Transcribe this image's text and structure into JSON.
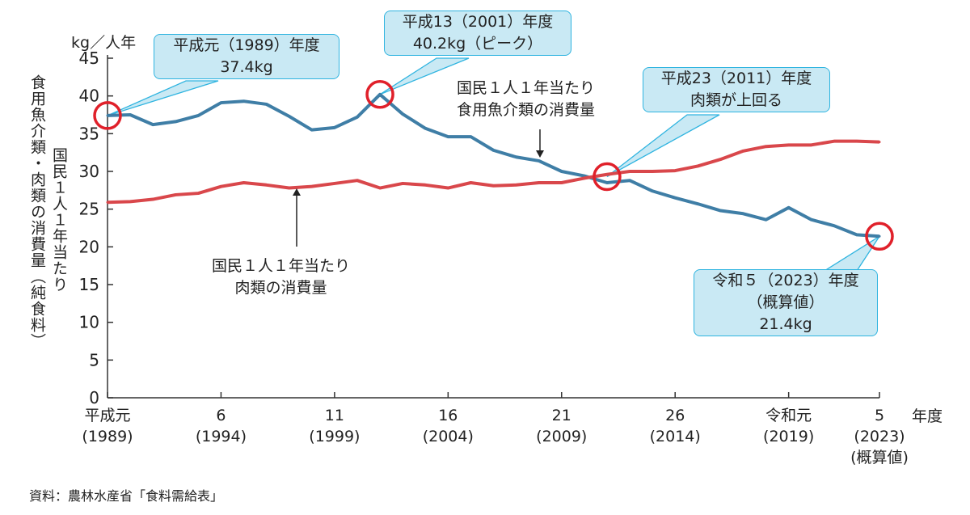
{
  "chart_data": {
    "type": "line",
    "ylabel_unit": "kg／人年",
    "ylabel_outer": "食用魚介類・肉類の消費量（純食料）",
    "ylabel_inner": "国民１人１年当たり",
    "xlabel": "年度",
    "ylim": [
      0,
      45
    ],
    "yticks": [
      0,
      5,
      10,
      15,
      20,
      25,
      30,
      35,
      40,
      45
    ],
    "xlim": [
      1989,
      2023
    ],
    "xticks": [
      {
        "x": 1989,
        "label": [
          "平成元",
          "(1989)"
        ]
      },
      {
        "x": 1994,
        "label": [
          "6",
          "(1994)"
        ]
      },
      {
        "x": 1999,
        "label": [
          "11",
          "(1999)"
        ]
      },
      {
        "x": 2004,
        "label": [
          "16",
          "(2004)"
        ]
      },
      {
        "x": 2009,
        "label": [
          "21",
          "(2009)"
        ]
      },
      {
        "x": 2014,
        "label": [
          "26",
          "(2014)"
        ]
      },
      {
        "x": 2019,
        "label": [
          "令和元",
          "(2019)"
        ]
      },
      {
        "x": 2023,
        "label": [
          "5",
          "(2023)",
          "(概算値)"
        ]
      }
    ],
    "x": [
      1989,
      1990,
      1991,
      1992,
      1993,
      1994,
      1995,
      1996,
      1997,
      1998,
      1999,
      2000,
      2001,
      2002,
      2003,
      2004,
      2005,
      2006,
      2007,
      2008,
      2009,
      2010,
      2011,
      2012,
      2013,
      2014,
      2015,
      2016,
      2017,
      2018,
      2019,
      2020,
      2021,
      2022,
      2023
    ],
    "series": [
      {
        "name": "国民１人１年当たり\n食用魚介類の消費量",
        "color": "#3f7ea6",
        "values": [
          37.4,
          37.5,
          36.2,
          36.6,
          37.4,
          39.1,
          39.3,
          38.9,
          37.3,
          35.5,
          35.8,
          37.2,
          40.2,
          37.6,
          35.7,
          34.6,
          34.6,
          32.8,
          31.9,
          31.4,
          30.0,
          29.4,
          28.5,
          28.8,
          27.4,
          26.5,
          25.7,
          24.8,
          24.4,
          23.6,
          25.2,
          23.6,
          22.8,
          21.6,
          21.4
        ]
      },
      {
        "name": "国民１人１年当たり\n肉類の消費量",
        "color": "#d9474b",
        "values": [
          25.9,
          26.0,
          26.3,
          26.9,
          27.1,
          28.0,
          28.5,
          28.2,
          27.8,
          28.0,
          28.4,
          28.8,
          27.8,
          28.4,
          28.2,
          27.8,
          28.5,
          28.1,
          28.2,
          28.5,
          28.5,
          29.1,
          29.6,
          30.0,
          30.0,
          30.1,
          30.7,
          31.6,
          32.7,
          33.3,
          33.5,
          33.5,
          34.0,
          34.0,
          33.9
        ]
      }
    ],
    "annotations": [
      {
        "text": "平成元（1989）年度\n37.4kg",
        "x": 1989,
        "y": 37.4
      },
      {
        "text": "平成13（2001）年度\n40.2kg（ピーク）",
        "x": 2001,
        "y": 40.2
      },
      {
        "text": "平成23（2011）年度\n肉類が上回る",
        "x": 2011,
        "y": 29.3
      },
      {
        "text": "令和５（2023）年度\n（概算値）\n21.4kg",
        "x": 2023,
        "y": 21.4
      }
    ],
    "highlight_color": "#e0202a",
    "callout_color": "#c9e9f4",
    "grid": false
  },
  "source": "資料：農林水産省「食料需給表」"
}
